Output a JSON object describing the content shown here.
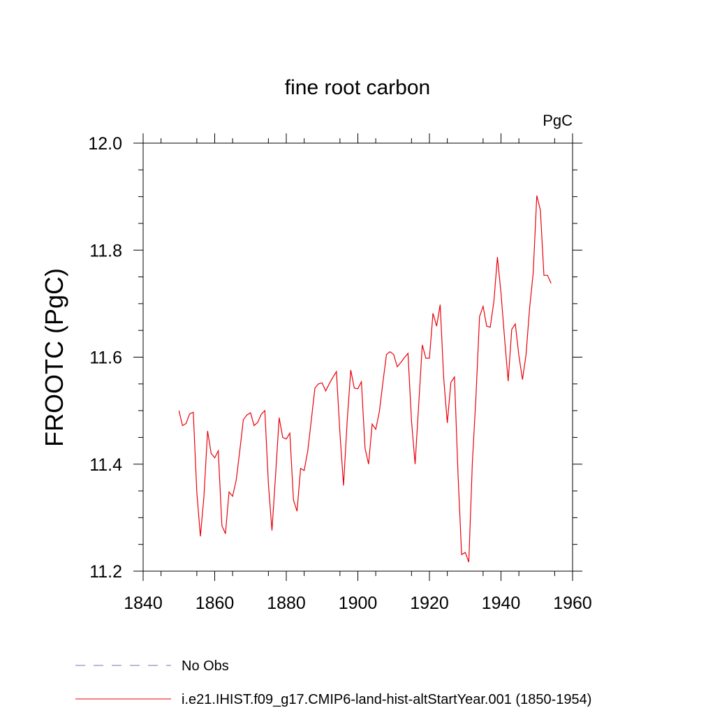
{
  "chart_data": {
    "type": "line",
    "title": "fine root carbon",
    "units_label": "PgC",
    "xlabel": "",
    "ylabel": "FROOTC  (PgC)",
    "xlim": [
      1840,
      1960
    ],
    "ylim": [
      11.2,
      12.0
    ],
    "x_ticks": [
      "1840",
      "1860",
      "1880",
      "1900",
      "1920",
      "1940",
      "1960"
    ],
    "y_ticks": [
      "11.2",
      "11.4",
      "11.6",
      "11.8",
      "12.0"
    ],
    "grid": false,
    "legend_position": "bottom",
    "legend": [
      {
        "label": "No Obs",
        "color": "#7a70b5",
        "dash": true
      },
      {
        "label": "i.e21.IHIST.f09_g17.CMIP6-land-hist-altStartYear.001 (1850-1954)",
        "color": "#e8000b",
        "dash": false
      }
    ],
    "series": [
      {
        "color": "#e8000b",
        "x": [
          1850,
          1851,
          1852,
          1853,
          1854,
          1855,
          1856,
          1857,
          1858,
          1859,
          1860,
          1861,
          1862,
          1863,
          1864,
          1865,
          1866,
          1867,
          1868,
          1869,
          1870,
          1871,
          1872,
          1873,
          1874,
          1875,
          1876,
          1877,
          1878,
          1879,
          1880,
          1881,
          1882,
          1883,
          1884,
          1885,
          1886,
          1887,
          1888,
          1889,
          1890,
          1891,
          1892,
          1893,
          1894,
          1895,
          1896,
          1897,
          1898,
          1899,
          1900,
          1901,
          1902,
          1903,
          1904,
          1905,
          1906,
          1907,
          1908,
          1909,
          1910,
          1911,
          1912,
          1913,
          1914,
          1915,
          1916,
          1917,
          1918,
          1919,
          1920,
          1921,
          1922,
          1923,
          1924,
          1925,
          1926,
          1927,
          1928,
          1929,
          1930,
          1931,
          1932,
          1933,
          1934,
          1935,
          1936,
          1937,
          1938,
          1939,
          1940,
          1941,
          1942,
          1943,
          1944,
          1945,
          1946,
          1947,
          1948,
          1949,
          1950,
          1951,
          1952,
          1953,
          1954
        ],
        "values": [
          11.5,
          11.472,
          11.476,
          11.494,
          11.497,
          11.347,
          11.265,
          11.34,
          11.462,
          11.42,
          11.412,
          11.425,
          11.285,
          11.27,
          11.348,
          11.34,
          11.37,
          11.425,
          11.483,
          11.492,
          11.496,
          11.472,
          11.478,
          11.493,
          11.5,
          11.363,
          11.276,
          11.378,
          11.487,
          11.45,
          11.447,
          11.458,
          11.333,
          11.312,
          11.392,
          11.388,
          11.425,
          11.483,
          11.542,
          11.55,
          11.552,
          11.537,
          11.55,
          11.562,
          11.573,
          11.457,
          11.36,
          11.478,
          11.576,
          11.542,
          11.541,
          11.554,
          11.43,
          11.4,
          11.475,
          11.465,
          11.498,
          11.553,
          11.605,
          11.61,
          11.605,
          11.582,
          11.59,
          11.599,
          11.607,
          11.48,
          11.4,
          11.51,
          11.623,
          11.598,
          11.598,
          11.682,
          11.658,
          11.698,
          11.56,
          11.477,
          11.553,
          11.563,
          11.38,
          11.231,
          11.235,
          11.217,
          11.403,
          11.525,
          11.676,
          11.695,
          11.658,
          11.656,
          11.704,
          11.787,
          11.72,
          11.636,
          11.555,
          11.652,
          11.662,
          11.603,
          11.558,
          11.605,
          11.692,
          11.757,
          11.902,
          11.875,
          11.753,
          11.753,
          11.738
        ]
      }
    ]
  }
}
